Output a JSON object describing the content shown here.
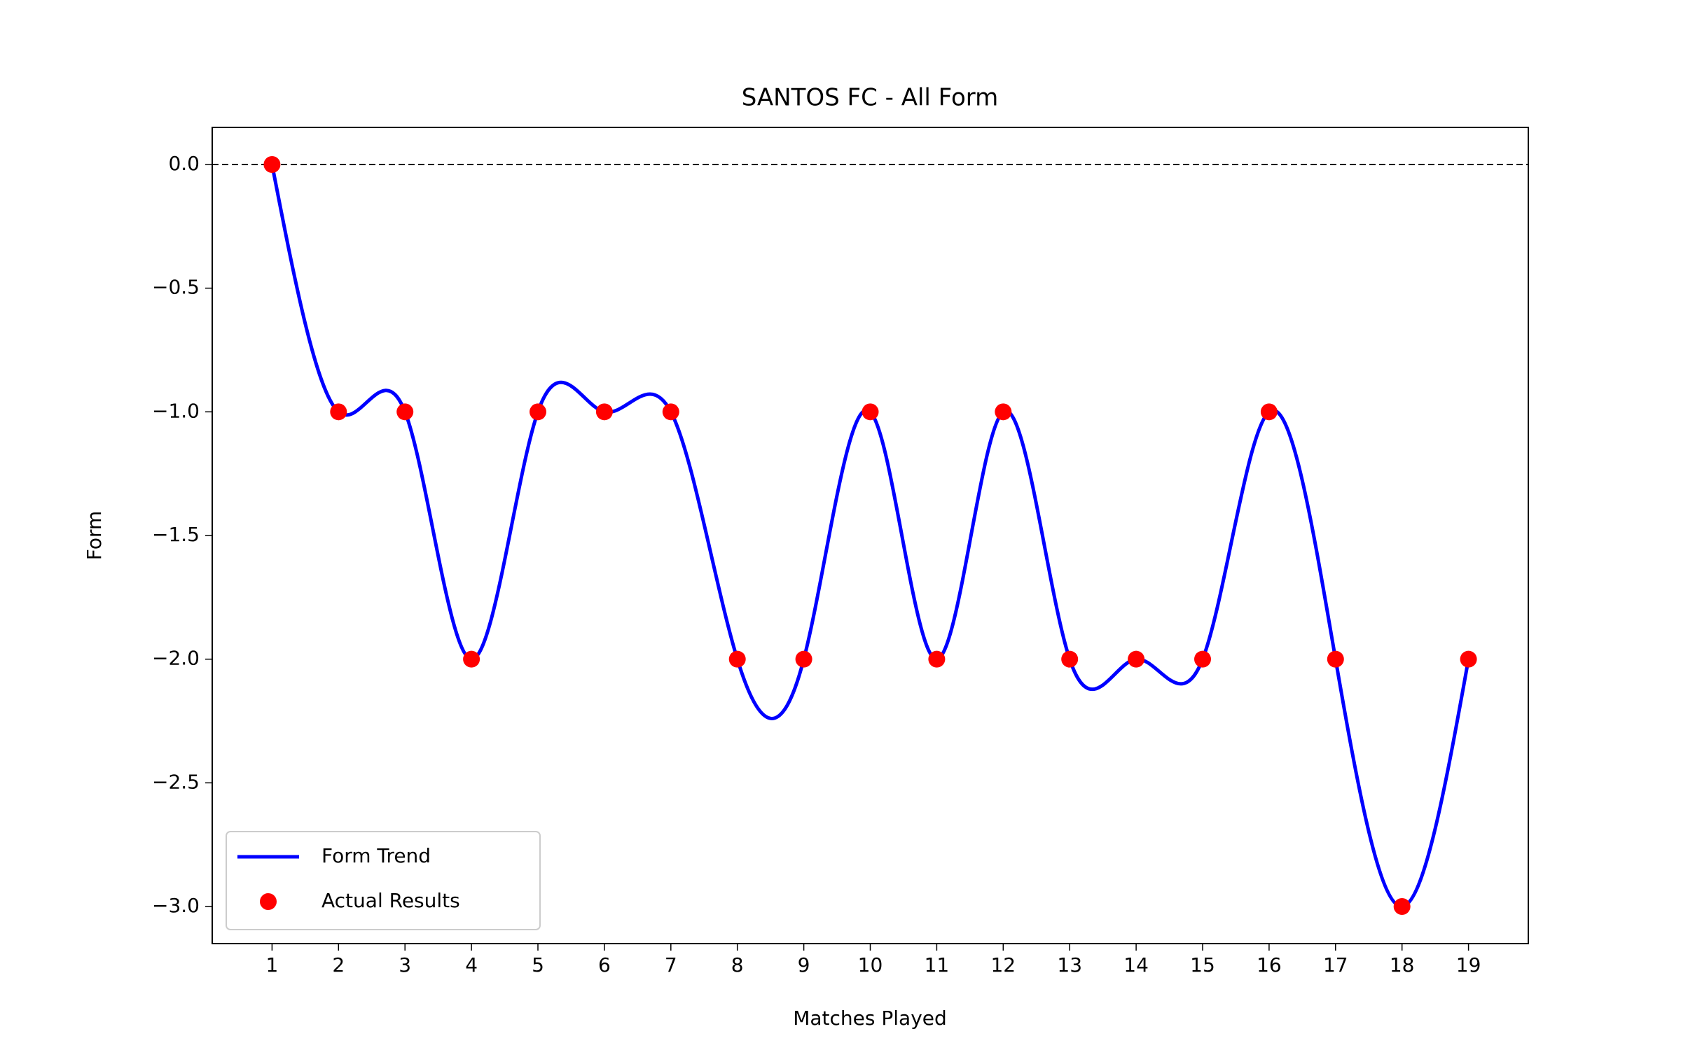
{
  "chart_data": {
    "type": "line",
    "title": "SANTOS FC - All Form",
    "x_label": "Matches Played",
    "y_label": "Form",
    "x": [
      1,
      2,
      3,
      4,
      5,
      6,
      7,
      8,
      9,
      10,
      11,
      12,
      13,
      14,
      15,
      16,
      17,
      18,
      19
    ],
    "series": [
      {
        "name": "Form Trend",
        "type": "line",
        "color": "#0000ff",
        "smooth": true,
        "values": [
          0,
          -1,
          -1,
          -2,
          -1,
          -1,
          -1,
          -2,
          -2,
          -1,
          -2,
          -1,
          -2,
          -2,
          -2,
          -1,
          -2,
          -3,
          -2
        ]
      },
      {
        "name": "Actual Results",
        "type": "scatter",
        "color": "#ff0000",
        "values": [
          0,
          -1,
          -1,
          -2,
          -1,
          -1,
          -1,
          -2,
          -2,
          -1,
          -2,
          -1,
          -2,
          -2,
          -2,
          -1,
          -2,
          -3,
          -2
        ]
      }
    ],
    "xlim": [
      0.1,
      19.9
    ],
    "ylim": [
      -3.15,
      0.15
    ],
    "xticks": [
      1,
      2,
      3,
      4,
      5,
      6,
      7,
      8,
      9,
      10,
      11,
      12,
      13,
      14,
      15,
      16,
      17,
      18,
      19
    ],
    "yticks": [
      {
        "value": 0,
        "label": "0.0"
      },
      {
        "value": -0.5,
        "label": "−0.5"
      },
      {
        "value": -1,
        "label": "−1.0"
      },
      {
        "value": -1.5,
        "label": "−1.5"
      },
      {
        "value": -2,
        "label": "−2.0"
      },
      {
        "value": -2.5,
        "label": "−2.5"
      },
      {
        "value": -3,
        "label": "−3.0"
      }
    ],
    "reference_line": 0,
    "grid": false,
    "legend": "lower left"
  }
}
